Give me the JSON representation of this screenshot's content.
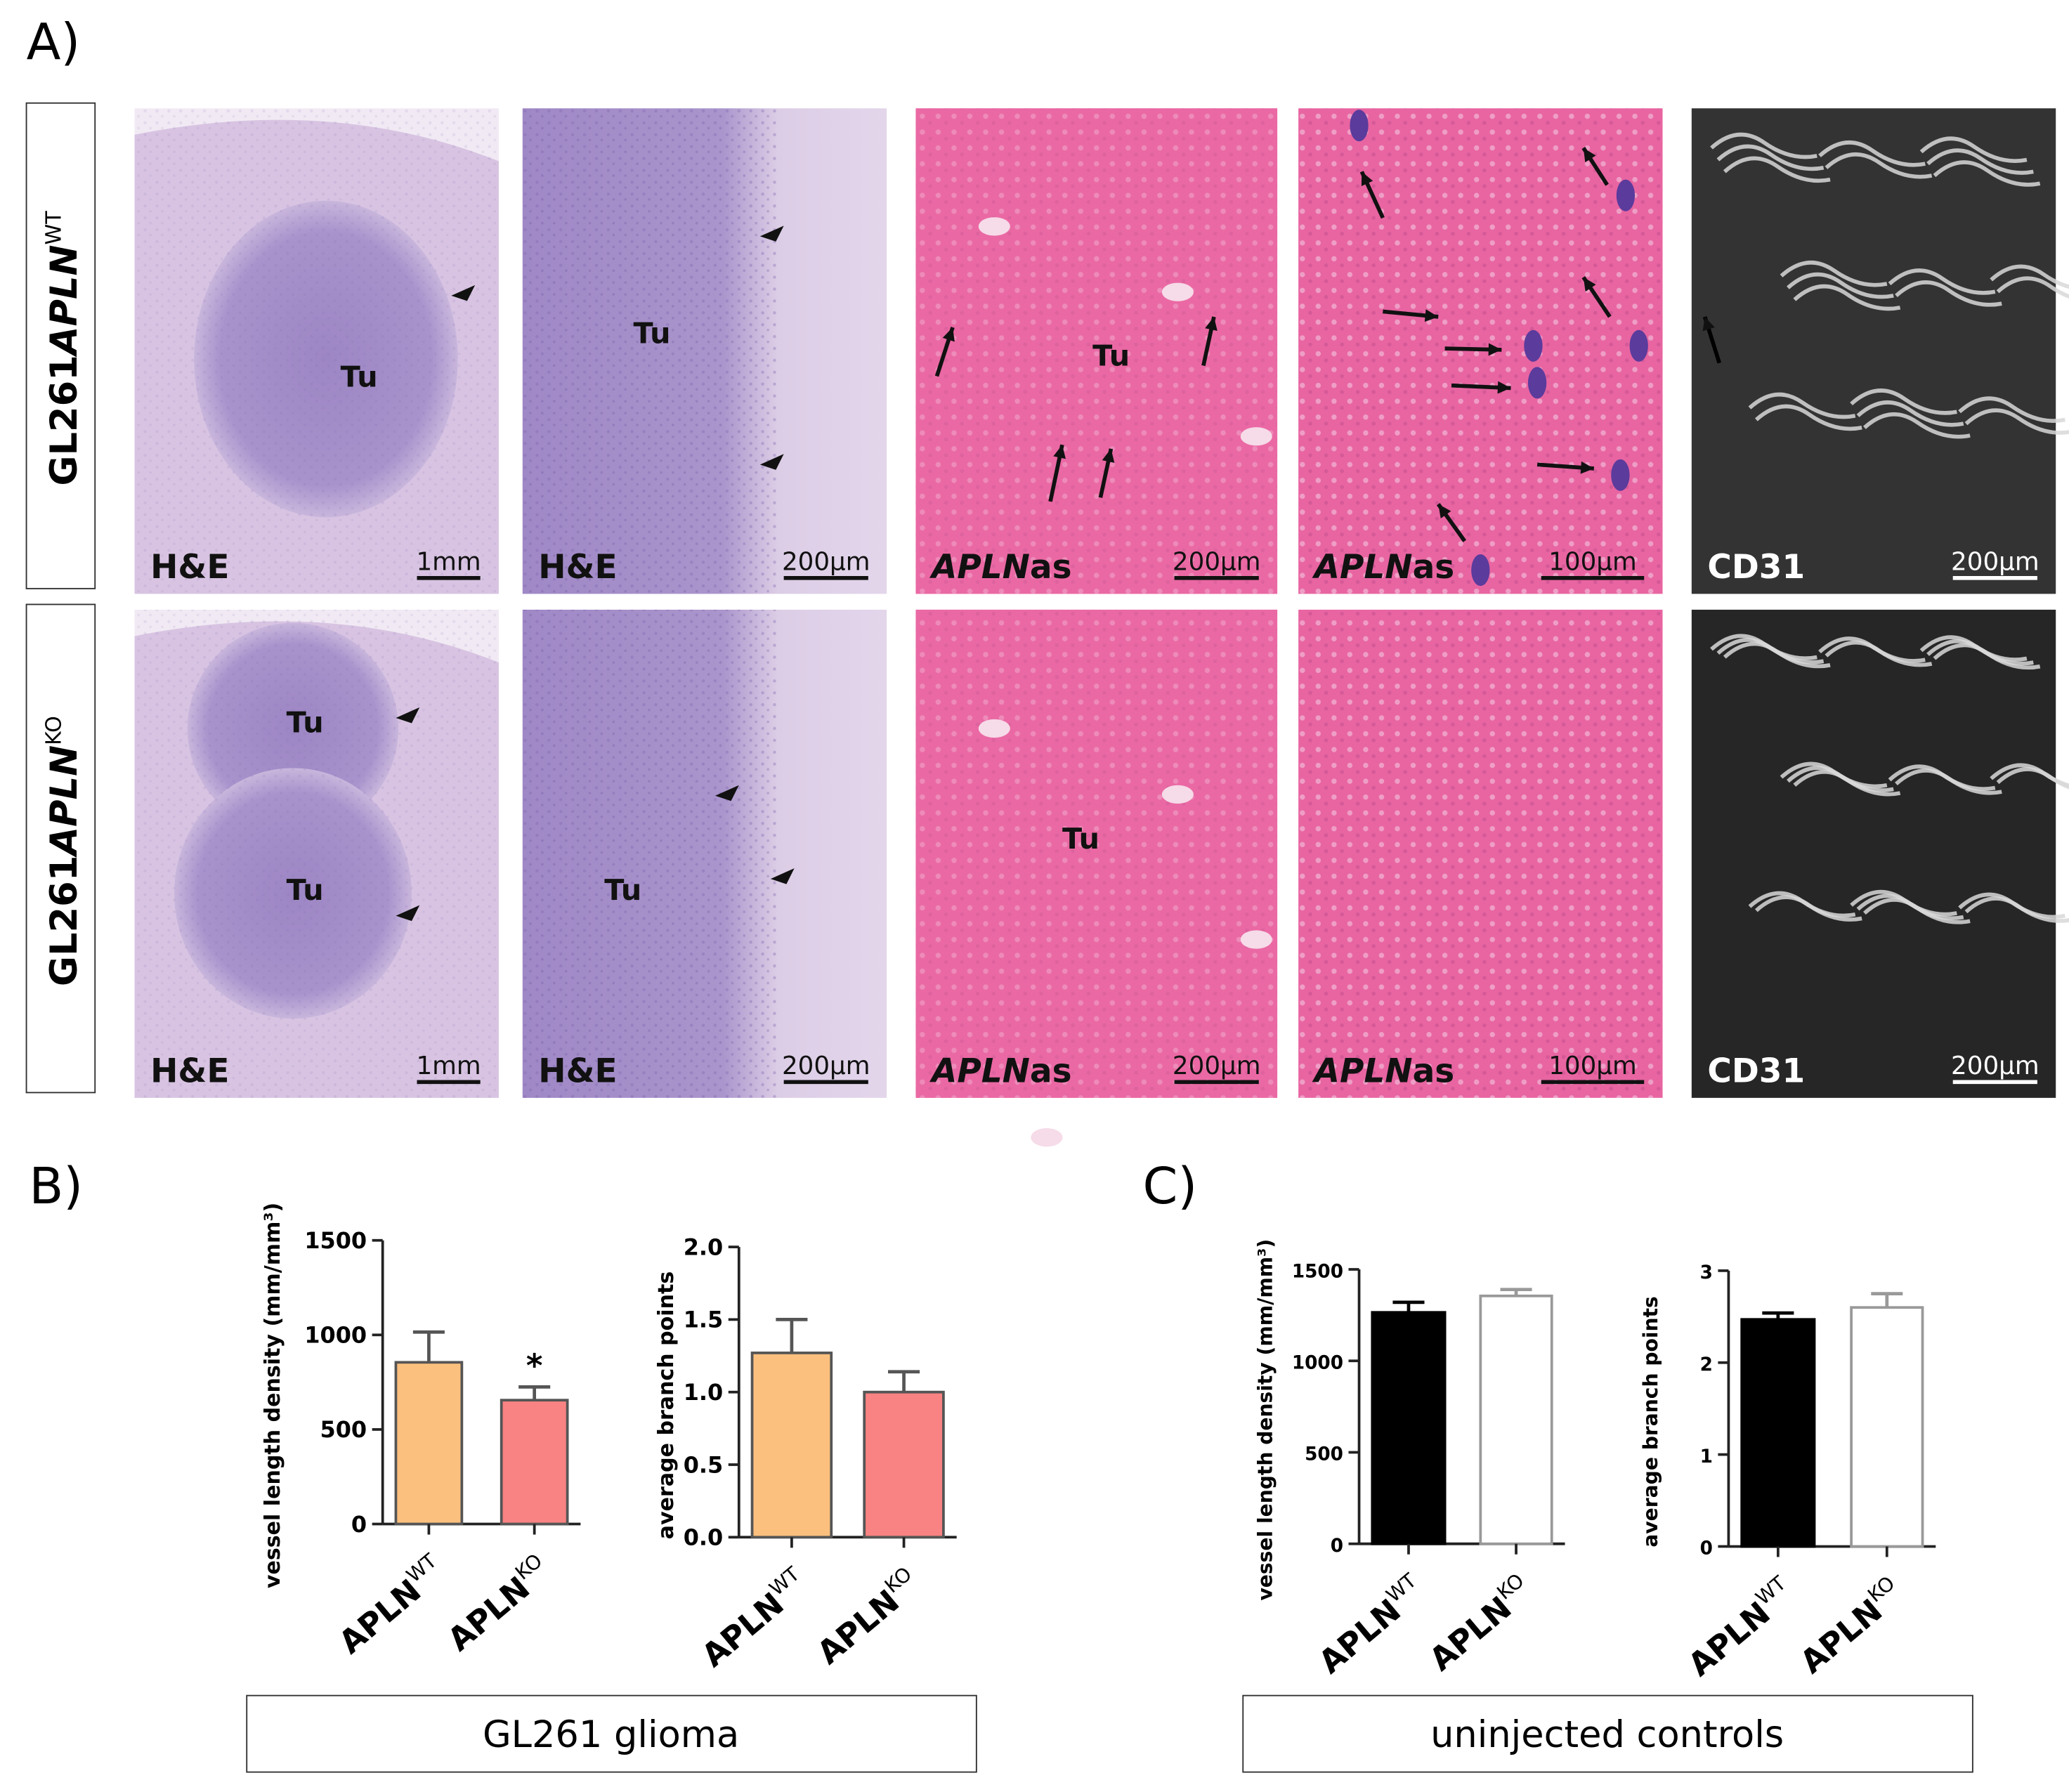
{
  "panel_labels": [
    "A)",
    "B)",
    "C)"
  ],
  "panel_a": {
    "rows": [
      {
        "label": {
          "base": "GL261",
          "italic": "APLN",
          "sup": "WT"
        },
        "images": [
          {
            "stain": {
              "text": "H&E"
            },
            "scale": "1mm",
            "tumor": [
              "Tu"
            ]
          },
          {
            "stain": {
              "text": "H&E"
            },
            "scale": "200µm",
            "tumor": [
              "Tu"
            ]
          },
          {
            "stain": {
              "italic": "APLN",
              "text": "as"
            },
            "scale": "200µm",
            "tumor": [
              "Tu"
            ]
          },
          {
            "stain": {
              "italic": "APLN",
              "text": "as"
            },
            "scale": "100µm",
            "tumor": []
          },
          {
            "stain": {
              "text": "CD31"
            },
            "scale": "200µm",
            "tumor": []
          }
        ]
      },
      {
        "label": {
          "base": "GL261",
          "italic": "APLN",
          "sup": "KO"
        },
        "images": [
          {
            "stain": {
              "text": "H&E"
            },
            "scale": "1mm",
            "tumor": [
              "Tu",
              "Tu"
            ]
          },
          {
            "stain": {
              "text": "H&E"
            },
            "scale": "200µm",
            "tumor": [
              "Tu"
            ]
          },
          {
            "stain": {
              "italic": "APLN",
              "text": "as"
            },
            "scale": "200µm",
            "tumor": [
              "Tu"
            ]
          },
          {
            "stain": {
              "italic": "APLN",
              "text": "as"
            },
            "scale": "100µm",
            "tumor": []
          },
          {
            "stain": {
              "text": "CD31"
            },
            "scale": "200µm",
            "tumor": []
          }
        ]
      }
    ]
  },
  "captions": [
    "GL261 glioma",
    "uninjected controls"
  ],
  "chart_data": [
    {
      "type": "bar",
      "ylabel": "vessel length density (mm/mm³)",
      "categories": [
        {
          "base": "APLN",
          "sup": "WT"
        },
        {
          "base": "APLN",
          "sup": "KO"
        }
      ],
      "values": [
        855,
        655
      ],
      "errors": [
        160,
        70
      ],
      "colors": [
        "#fcc07e",
        "#f98282"
      ],
      "edge_colors": [
        "#555555",
        "#555555"
      ],
      "ylim": [
        0,
        1500
      ],
      "yticks": [
        0,
        500,
        1000,
        1500
      ],
      "annotation": "*"
    },
    {
      "type": "bar",
      "ylabel": "average branch points",
      "categories": [
        {
          "base": "APLN",
          "sup": "WT"
        },
        {
          "base": "APLN",
          "sup": "KO"
        }
      ],
      "values": [
        1.27,
        1.0
      ],
      "errors": [
        0.23,
        0.14
      ],
      "colors": [
        "#fcc07e",
        "#f98282"
      ],
      "edge_colors": [
        "#555555",
        "#555555"
      ],
      "ylim": [
        0,
        2.0
      ],
      "yticks": [
        {
          "value": 0,
          "label": "0.0"
        },
        {
          "value": 0.5,
          "label": "0.5"
        },
        {
          "value": 1,
          "label": "1.0"
        },
        {
          "value": 1.5,
          "label": "1.5"
        },
        {
          "value": 2,
          "label": "2.0"
        }
      ]
    },
    {
      "type": "bar",
      "ylabel": "vessel length density (mm/mm³)",
      "categories": [
        {
          "base": "APLN",
          "sup": "WT"
        },
        {
          "base": "APLN",
          "sup": "KO"
        }
      ],
      "values": [
        1265,
        1355
      ],
      "errors": [
        55,
        35
      ],
      "colors": [
        "#000000",
        "#ffffff"
      ],
      "edge_colors": [
        "#000000",
        "#999999"
      ],
      "ylim": [
        0,
        1500
      ],
      "yticks": [
        0,
        500,
        1000,
        1500
      ]
    },
    {
      "type": "bar",
      "ylabel": "average branch points",
      "categories": [
        {
          "base": "APLN",
          "sup": "WT"
        },
        {
          "base": "APLN",
          "sup": "KO"
        }
      ],
      "values": [
        2.47,
        2.6
      ],
      "errors": [
        0.07,
        0.15
      ],
      "colors": [
        "#000000",
        "#ffffff"
      ],
      "edge_colors": [
        "#000000",
        "#999999"
      ],
      "ylim": [
        0,
        3
      ],
      "yticks": [
        0,
        1,
        2,
        3
      ]
    }
  ]
}
